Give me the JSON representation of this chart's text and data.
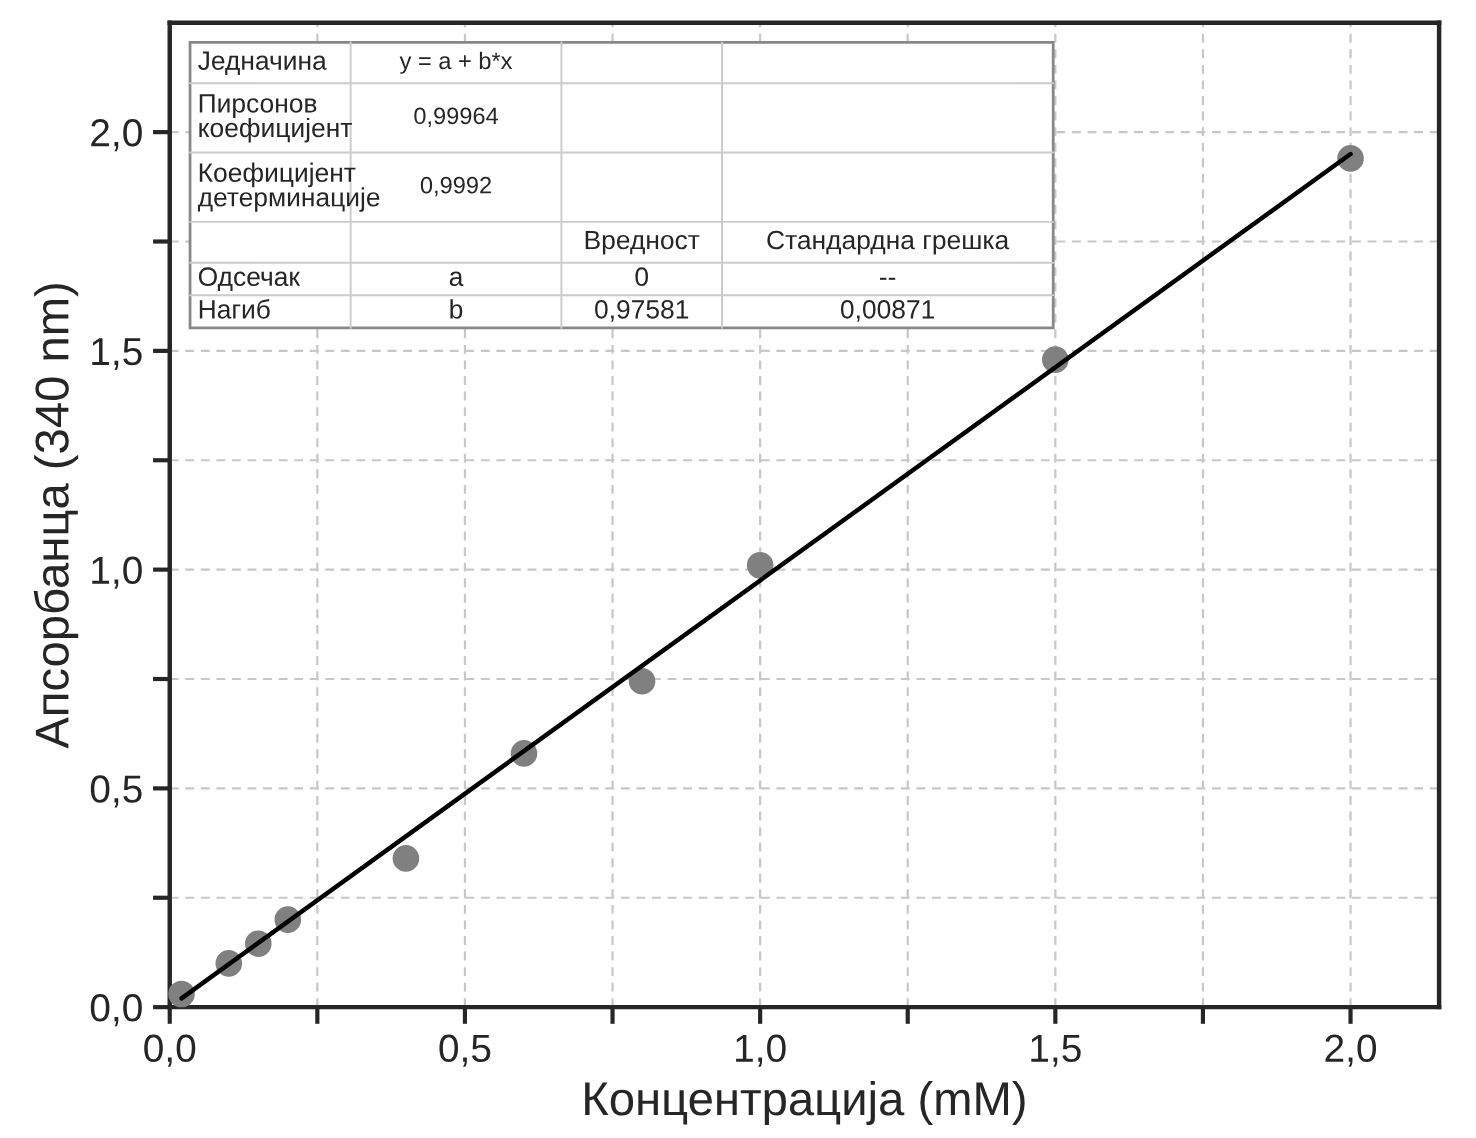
{
  "chart_data": {
    "type": "scatter",
    "xlabel": "Концентрација (mM)",
    "ylabel": "Апсорбанца (340 nm)",
    "xlim": [
      0,
      2.15
    ],
    "ylim": [
      0,
      2.25
    ],
    "xticks": [
      {
        "value": 0,
        "label": "0,0"
      },
      {
        "value": 0.25,
        "label": null
      },
      {
        "value": 0.5,
        "label": "0,5"
      },
      {
        "value": 0.75,
        "label": null
      },
      {
        "value": 1.0,
        "label": "1,0"
      },
      {
        "value": 1.25,
        "label": null
      },
      {
        "value": 1.5,
        "label": "1,5"
      },
      {
        "value": 1.75,
        "label": null
      },
      {
        "value": 2.0,
        "label": "2,0"
      }
    ],
    "yticks": [
      {
        "value": 0,
        "label": "0,0"
      },
      {
        "value": 0.25,
        "label": null
      },
      {
        "value": 0.5,
        "label": "0,5"
      },
      {
        "value": 0.75,
        "label": null
      },
      {
        "value": 1.0,
        "label": "1,0"
      },
      {
        "value": 1.25,
        "label": null
      },
      {
        "value": 1.5,
        "label": "1,5"
      },
      {
        "value": 1.75,
        "label": null
      },
      {
        "value": 2.0,
        "label": "2,0"
      }
    ],
    "grid": true,
    "series": [
      {
        "marker": "circle",
        "color": "#808080",
        "x": [
          0.02,
          0.1,
          0.15,
          0.2,
          0.4,
          0.6,
          0.8,
          1.0,
          1.5,
          2.0
        ],
        "values": [
          0.03,
          0.1,
          0.145,
          0.2,
          0.34,
          0.58,
          0.745,
          1.01,
          1.48,
          1.94
        ]
      },
      {
        "type": "line",
        "color": "#000000",
        "x": [
          0.02,
          2.0
        ],
        "values": [
          0.02,
          1.95
        ]
      }
    ],
    "annotations": [
      "Једначина",
      "y = a + b*x",
      "Пирсонов\nкоефицијент",
      "0,99964",
      "Коефицијент\nдетерминације",
      "0,9992",
      "Вредност",
      "Стандардна грешка",
      "Одсечак",
      "a",
      "0",
      "--",
      "Нагиб",
      "b",
      "0,97581",
      "0,00871"
    ]
  }
}
